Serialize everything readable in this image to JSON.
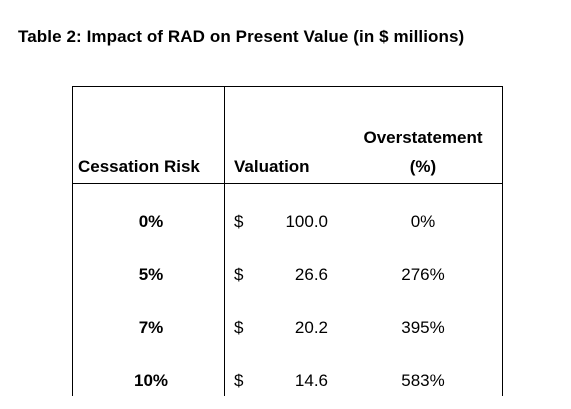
{
  "title": "Table 2: Impact of RAD on Present Value (in $ millions)",
  "table": {
    "headers": {
      "risk": "Cessation Risk",
      "valuation": "Valuation",
      "overstatement_line1": "Overstatement",
      "overstatement_line2": "(%)"
    },
    "rows": [
      {
        "risk": "0%",
        "currency": "$",
        "valuation": "100.0",
        "overstatement": "0%"
      },
      {
        "risk": "5%",
        "currency": "$",
        "valuation": "26.6",
        "overstatement": "276%"
      },
      {
        "risk": "7%",
        "currency": "$",
        "valuation": "20.2",
        "overstatement": "395%"
      },
      {
        "risk": "10%",
        "currency": "$",
        "valuation": "14.6",
        "overstatement": "583%"
      }
    ]
  }
}
